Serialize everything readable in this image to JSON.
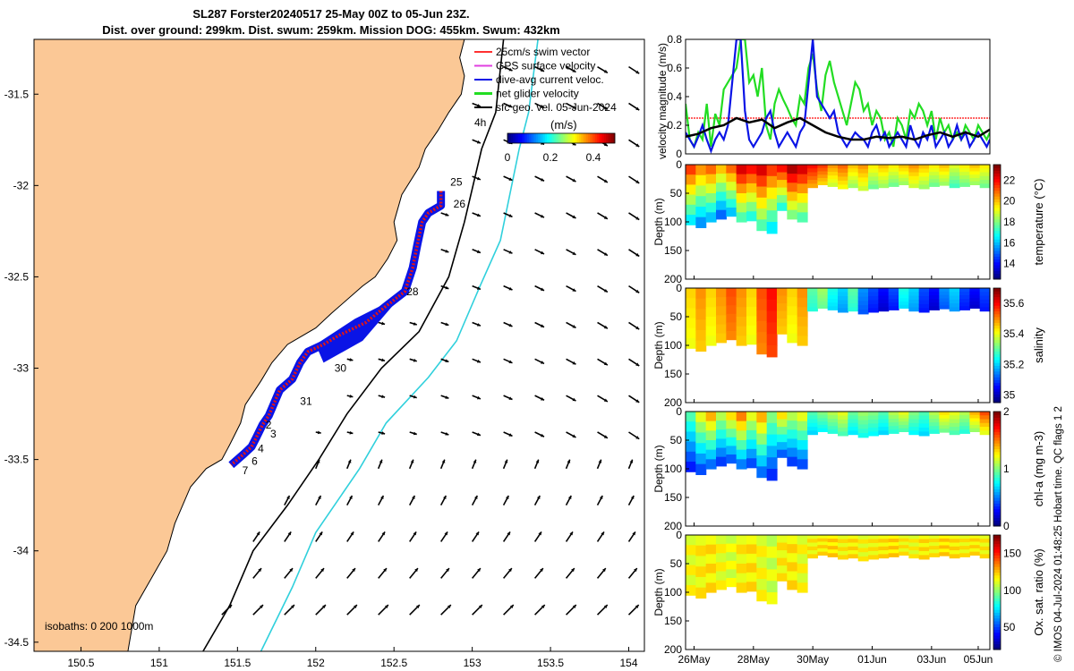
{
  "title_line1": "SL287 Forster20240517 25-May 00Z to 05-Jun 23Z.",
  "title_line2": "Dist. over ground: 299km. Dist. swum: 259km. Mission DOG: 455km. Swum: 432km",
  "credit": "© IMOS 04-Jul-2024 01:48:25 Hobart time. QC flags 1  2",
  "colors": {
    "land": "#fbc896",
    "track_blue": "#0a14e6",
    "track_red": "#e21616",
    "net_green": "#22dd22",
    "isobath_cyan": "#30d0dc",
    "swim_ref": "#ff3030",
    "gps_magenta": "#e040e0"
  },
  "map": {
    "xlim": [
      150.2,
      154.1
    ],
    "ylim": [
      -34.55,
      -31.2
    ],
    "xticks": [
      "150.5",
      "151",
      "151.5",
      "152",
      "152.5",
      "153",
      "153.5",
      "154"
    ],
    "yticks": [
      "-31.5",
      "-32",
      "-32.5",
      "-33",
      "-33.5",
      "-34",
      "-34.5"
    ],
    "legend": [
      "25cm/s swim vector",
      "GPS surface velocity",
      "dive-avg current veloc.",
      "net glider velocity",
      "sfc geo. vel. 05-Jun-2024"
    ],
    "colorbar_units": "(m/s)",
    "colorbar_ticks": [
      "0",
      "0.2",
      "0.4"
    ],
    "colorbar_range": [
      0,
      0.5
    ],
    "isobaths_text": "isobaths: 0   200  1000m",
    "time_label_4h": "4h",
    "day_labels": [
      {
        "text": "25",
        "lon": 152.86,
        "lat": -32.0
      },
      {
        "text": "26",
        "lon": 152.88,
        "lat": -32.12
      },
      {
        "text": "28",
        "lon": 152.58,
        "lat": -32.6
      },
      {
        "text": "30",
        "lon": 152.12,
        "lat": -33.02
      },
      {
        "text": "31",
        "lon": 151.9,
        "lat": -33.2
      },
      {
        "text": "2",
        "lon": 151.68,
        "lat": -33.33
      },
      {
        "text": "3",
        "lon": 151.71,
        "lat": -33.38
      },
      {
        "text": "4",
        "lon": 151.63,
        "lat": -33.46
      },
      {
        "text": "6",
        "lon": 151.59,
        "lat": -33.53
      },
      {
        "text": "7",
        "lon": 151.53,
        "lat": -33.58
      }
    ],
    "track": [
      [
        152.8,
        -32.03
      ],
      [
        152.8,
        -32.11
      ],
      [
        152.72,
        -32.15
      ],
      [
        152.68,
        -32.2
      ],
      [
        152.65,
        -32.32
      ],
      [
        152.62,
        -32.45
      ],
      [
        152.57,
        -32.58
      ],
      [
        152.45,
        -32.66
      ],
      [
        152.32,
        -32.75
      ],
      [
        152.15,
        -32.82
      ],
      [
        152.05,
        -32.87
      ],
      [
        151.95,
        -32.91
      ],
      [
        151.9,
        -32.97
      ],
      [
        151.85,
        -33.06
      ],
      [
        151.77,
        -33.12
      ],
      [
        151.73,
        -33.2
      ],
      [
        151.7,
        -33.26
      ],
      [
        151.66,
        -33.31
      ],
      [
        151.62,
        -33.38
      ],
      [
        151.59,
        -33.43
      ],
      [
        151.54,
        -33.47
      ],
      [
        151.46,
        -33.53
      ]
    ],
    "coast": [
      [
        152.95,
        -31.2
      ],
      [
        152.92,
        -31.3
      ],
      [
        152.95,
        -31.4
      ],
      [
        152.93,
        -31.5
      ],
      [
        152.85,
        -31.6
      ],
      [
        152.78,
        -31.7
      ],
      [
        152.7,
        -31.8
      ],
      [
        152.66,
        -31.9
      ],
      [
        152.55,
        -32.05
      ],
      [
        152.5,
        -32.2
      ],
      [
        152.52,
        -32.3
      ],
      [
        152.46,
        -32.4
      ],
      [
        152.38,
        -32.5
      ],
      [
        152.3,
        -32.55
      ],
      [
        152.1,
        -32.7
      ],
      [
        152.0,
        -32.78
      ],
      [
        151.82,
        -32.87
      ],
      [
        151.72,
        -32.97
      ],
      [
        151.65,
        -33.07
      ],
      [
        151.55,
        -33.2
      ],
      [
        151.52,
        -33.3
      ],
      [
        151.45,
        -33.42
      ],
      [
        151.4,
        -33.5
      ],
      [
        151.3,
        -33.55
      ],
      [
        151.2,
        -33.65
      ],
      [
        151.1,
        -33.85
      ],
      [
        151.05,
        -34.0
      ],
      [
        150.95,
        -34.15
      ],
      [
        150.85,
        -34.3
      ],
      [
        150.8,
        -34.55
      ]
    ],
    "isobath_200": [
      [
        153.2,
        -31.2
      ],
      [
        153.15,
        -31.6
      ],
      [
        153.06,
        -31.8
      ],
      [
        152.95,
        -32.2
      ],
      [
        152.85,
        -32.5
      ],
      [
        152.66,
        -32.8
      ],
      [
        152.42,
        -33.0
      ],
      [
        152.2,
        -33.25
      ],
      [
        152.02,
        -33.5
      ],
      [
        151.82,
        -33.75
      ],
      [
        151.6,
        -34.0
      ],
      [
        151.45,
        -34.3
      ],
      [
        151.28,
        -34.55
      ]
    ],
    "isobath_1000": [
      [
        153.42,
        -31.2
      ],
      [
        153.36,
        -31.6
      ],
      [
        153.3,
        -31.8
      ],
      [
        153.18,
        -32.3
      ],
      [
        153.05,
        -32.55
      ],
      [
        152.9,
        -32.85
      ],
      [
        152.72,
        -33.05
      ],
      [
        152.45,
        -33.3
      ],
      [
        152.28,
        -33.55
      ],
      [
        152.0,
        -33.9
      ],
      [
        151.85,
        -34.2
      ],
      [
        151.65,
        -34.55
      ]
    ],
    "vectors_note": "surface geostrophic velocity field"
  },
  "chart_data": [
    {
      "type": "line",
      "ylabel": "velocity magnitude (m/s)",
      "ylim": [
        0,
        0.8
      ],
      "yticks": [
        "0",
        "0.2",
        "0.4",
        "0.6",
        "0.8"
      ],
      "reference_line": 0.25,
      "series": [
        {
          "name": "net glider velocity",
          "color": "#22dd22",
          "x": [
            0,
            4,
            8,
            12,
            16,
            20,
            24,
            28,
            32,
            36,
            40,
            44,
            48,
            52,
            56,
            60,
            64,
            68,
            72,
            76,
            80,
            84,
            88,
            92,
            96,
            100,
            104,
            108,
            112,
            116,
            120,
            124,
            128,
            132,
            136,
            140,
            144,
            148,
            152,
            156,
            160,
            164,
            168,
            172,
            176,
            180,
            184,
            188,
            192,
            196,
            200,
            204,
            208,
            212,
            216,
            220,
            224,
            228,
            232,
            236,
            240,
            244,
            248,
            252,
            256,
            260,
            264,
            268,
            272,
            276,
            280,
            284,
            287
          ],
          "values": [
            0.35,
            0.1,
            0.05,
            0.15,
            0.1,
            0.35,
            0.05,
            0.28,
            0.2,
            0.45,
            0.5,
            0.55,
            0.6,
            0.8,
            0.8,
            0.5,
            0.55,
            0.4,
            0.6,
            0.2,
            0.1,
            0.35,
            0.45,
            0.38,
            0.32,
            0.25,
            0.2,
            0.4,
            0.35,
            0.6,
            0.7,
            0.45,
            0.3,
            0.55,
            0.65,
            0.5,
            0.4,
            0.3,
            0.2,
            0.35,
            0.5,
            0.45,
            0.3,
            0.35,
            0.2,
            0.3,
            0.25,
            0.1,
            0.15,
            0.05,
            0.25,
            0.2,
            0.1,
            0.3,
            0.25,
            0.35,
            0.3,
            0.2,
            0.3,
            0.1,
            0.25,
            0.15,
            0.2,
            0.1,
            0.15,
            0.1,
            0.2,
            0.15,
            0.1,
            0.2,
            0.15,
            0.1,
            0.15
          ]
        },
        {
          "name": "dive-avg current veloc.",
          "color": "#0a14e6",
          "x": [
            0,
            4,
            8,
            12,
            16,
            20,
            24,
            28,
            32,
            36,
            40,
            44,
            48,
            52,
            56,
            60,
            64,
            68,
            72,
            76,
            80,
            84,
            88,
            92,
            96,
            100,
            104,
            108,
            112,
            116,
            120,
            124,
            128,
            132,
            136,
            140,
            144,
            148,
            152,
            156,
            160,
            164,
            168,
            172,
            176,
            180,
            184,
            188,
            192,
            196,
            200,
            204,
            208,
            212,
            216,
            220,
            224,
            228,
            232,
            236,
            240,
            244,
            248,
            252,
            256,
            260,
            264,
            268,
            272,
            276,
            280,
            284,
            287
          ],
          "values": [
            0.15,
            0.1,
            0.05,
            0.12,
            0.2,
            0.1,
            0.02,
            0.1,
            0.15,
            0.1,
            0.2,
            0.5,
            0.8,
            0.8,
            0.3,
            0.1,
            0.05,
            0.1,
            0.15,
            0.25,
            0.3,
            0.15,
            0.05,
            0.1,
            0.15,
            0.1,
            0.05,
            0.15,
            0.2,
            0.5,
            0.8,
            0.4,
            0.35,
            0.3,
            0.25,
            0.3,
            0.15,
            0.1,
            0.05,
            0.1,
            0.15,
            0.12,
            0.1,
            0.05,
            0.15,
            0.2,
            0.1,
            0.15,
            0.05,
            0.1,
            0.15,
            0.1,
            0.05,
            0.2,
            0.1,
            0.05,
            0.15,
            0.1,
            0.2,
            0.05,
            0.1,
            0.15,
            0.05,
            0.1,
            0.2,
            0.1,
            0.15,
            0.05,
            0.1,
            0.15,
            0.1,
            0.05,
            0.1
          ]
        },
        {
          "name": "sfc geo. vel.",
          "color": "#000000",
          "x": [
            0,
            12,
            24,
            36,
            48,
            60,
            72,
            84,
            96,
            108,
            120,
            132,
            144,
            156,
            168,
            180,
            192,
            204,
            216,
            228,
            240,
            252,
            264,
            276,
            287
          ],
          "values": [
            0.12,
            0.14,
            0.18,
            0.2,
            0.25,
            0.22,
            0.24,
            0.18,
            0.22,
            0.25,
            0.2,
            0.15,
            0.12,
            0.1,
            0.1,
            0.12,
            0.11,
            0.12,
            0.1,
            0.13,
            0.15,
            0.12,
            0.15,
            0.12,
            0.17
          ]
        }
      ]
    },
    {
      "type": "heatmap",
      "label": "temperature (°C)",
      "ylabel": "Depth (m)",
      "ylim": [
        200,
        0
      ],
      "yticks": [
        "0",
        "50",
        "100",
        "150",
        "200"
      ],
      "clim": [
        12.5,
        23.5
      ],
      "cticks": [
        "14",
        "16",
        "18",
        "20",
        "22"
      ],
      "column_values": [
        21.5,
        20.5,
        21,
        20,
        21,
        22.5,
        22,
        22.5,
        21.5,
        22,
        23,
        22.5,
        22,
        21.5,
        20.5,
        21,
        20,
        20.5,
        19.5,
        20,
        19.5,
        20,
        20.5,
        20,
        19.5,
        20,
        19,
        19.5,
        20,
        19.5
      ],
      "depth_max": [
        105,
        110,
        100,
        95,
        90,
        100,
        98,
        115,
        120,
        80,
        95,
        100,
        40,
        35,
        38,
        42,
        40,
        45,
        42,
        40,
        38,
        35,
        40,
        42,
        38,
        36,
        40,
        38,
        35,
        40
      ]
    },
    {
      "type": "heatmap",
      "label": "salinity",
      "ylabel": "Depth (m)",
      "ylim": [
        200,
        0
      ],
      "yticks": [
        "0",
        "50",
        "100",
        "150",
        "200"
      ],
      "clim": [
        34.95,
        35.7
      ],
      "cticks": [
        "35",
        "35.2",
        "35.4",
        "35.6"
      ],
      "column_values": [
        35.45,
        35.5,
        35.45,
        35.5,
        35.55,
        35.5,
        35.45,
        35.55,
        35.6,
        35.5,
        35.45,
        35.5,
        35.3,
        35.35,
        35.25,
        35.2,
        35.3,
        35.15,
        35.1,
        35.05,
        35.1,
        35.25,
        35.2,
        35.1,
        35.05,
        35.15,
        35.2,
        35.1,
        35.05,
        35.1
      ],
      "depth_max": [
        105,
        110,
        100,
        95,
        90,
        100,
        98,
        115,
        120,
        80,
        95,
        100,
        40,
        35,
        38,
        42,
        40,
        45,
        42,
        40,
        38,
        35,
        40,
        42,
        38,
        36,
        40,
        38,
        35,
        40
      ]
    },
    {
      "type": "heatmap",
      "label": "chl-a (mg m-3)",
      "ylabel": "Depth (m)",
      "ylim": [
        200,
        0
      ],
      "yticks": [
        "0",
        "50",
        "100",
        "150",
        "200"
      ],
      "clim": [
        0,
        2
      ],
      "cticks": [
        "0",
        "1",
        "2"
      ],
      "column_values": [
        0.9,
        1.2,
        1.4,
        1.1,
        1.3,
        1.5,
        1.2,
        1.4,
        1.0,
        1.3,
        1.1,
        1.2,
        0.9,
        1.0,
        1.1,
        1.2,
        0.95,
        1.05,
        1.0,
        0.9,
        1.1,
        1.2,
        1.0,
        0.9,
        1.1,
        1.3,
        1.2,
        1.1,
        1.4,
        1.6
      ],
      "depth_max": [
        105,
        110,
        100,
        95,
        90,
        100,
        98,
        115,
        120,
        80,
        95,
        100,
        40,
        35,
        38,
        42,
        40,
        45,
        42,
        40,
        38,
        35,
        40,
        42,
        38,
        36,
        40,
        38,
        35,
        40
      ]
    },
    {
      "type": "heatmap",
      "label": "Ox. sat. ratio (%)",
      "ylabel": "Depth (m)",
      "ylim": [
        200,
        0
      ],
      "yticks": [
        "0",
        "50",
        "100",
        "150",
        "200"
      ],
      "clim": [
        20,
        175
      ],
      "cticks": [
        "50",
        "100",
        "150"
      ],
      "column_values": [
        115,
        118,
        120,
        115,
        112,
        118,
        120,
        115,
        110,
        118,
        120,
        115,
        118,
        120,
        122,
        118,
        120,
        116,
        118,
        120,
        122,
        118,
        116,
        120,
        118,
        122,
        120,
        118,
        120,
        118
      ],
      "depth_max": [
        105,
        110,
        100,
        95,
        90,
        100,
        98,
        115,
        120,
        80,
        95,
        100,
        40,
        35,
        38,
        42,
        40,
        45,
        42,
        40,
        38,
        35,
        40,
        42,
        38,
        36,
        40,
        38,
        35,
        40
      ],
      "xticks": [
        "26May",
        "28May",
        "30May",
        "01Jun",
        "03Jun",
        "05Jun"
      ]
    }
  ]
}
